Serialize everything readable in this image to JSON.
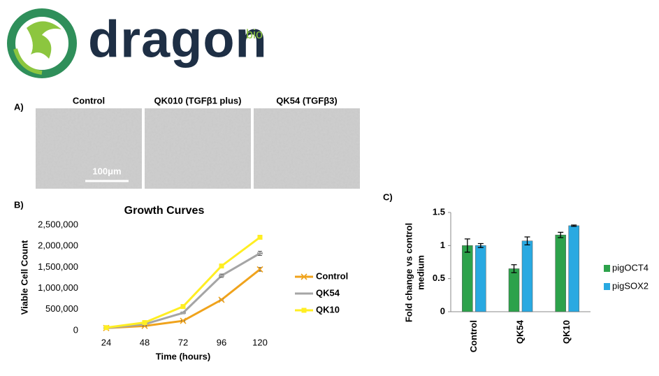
{
  "logo": {
    "name": "dragon",
    "suffix": "bio"
  },
  "panel_a": {
    "label": "A)",
    "images": [
      "Control",
      "QK010 (TGFβ1 plus)",
      "QK54 (TGFβ3)"
    ],
    "scale_bar": "100μm"
  },
  "chart_data": [
    {
      "type": "line",
      "panel": "B)",
      "title": "Growth Curves",
      "x_label": "Time (hours)",
      "y_label": "Viable Cell Count",
      "categories": [
        "24",
        "48",
        "72",
        "96",
        "120"
      ],
      "ylim": [
        0,
        2500000
      ],
      "yticks": [
        0,
        {
          "value": 500000,
          "label": "500,000"
        },
        {
          "value": 1000000,
          "label": "1,000,000"
        },
        {
          "value": 1500000,
          "label": "1,500,000"
        },
        {
          "value": 2000000,
          "label": "2,000,000"
        },
        {
          "value": 2500000,
          "label": "2,500,000"
        }
      ],
      "legend": "right",
      "series": [
        {
          "name": "Control",
          "color": "#f0a31c",
          "marker": "x",
          "values": [
            60000,
            110000,
            230000,
            730000,
            1450000
          ],
          "errors": [
            10000,
            10000,
            15000,
            20000,
            45000
          ]
        },
        {
          "name": "QK54",
          "color": "#a5a5a5",
          "marker": "dash",
          "values": [
            60000,
            150000,
            420000,
            1300000,
            1830000
          ],
          "errors": [
            10000,
            10000,
            20000,
            40000,
            50000
          ]
        },
        {
          "name": "QK10",
          "color": "#ffee22",
          "marker": "square",
          "values": [
            70000,
            190000,
            570000,
            1530000,
            2210000
          ],
          "errors": [
            10000,
            10000,
            20000,
            30000,
            50000
          ]
        }
      ]
    },
    {
      "type": "bar",
      "panel": "C)",
      "y_label": [
        "Fold change vs control",
        "medium"
      ],
      "categories": [
        "Control",
        "QK54",
        "QK10"
      ],
      "ylim": [
        0,
        1.5
      ],
      "yticks": [
        0,
        0.5,
        1,
        1.5
      ],
      "legend": "right",
      "series": [
        {
          "name": "pigOCT4",
          "color": "#2da24b",
          "values": [
            1.0,
            0.65,
            1.16
          ],
          "errors": [
            0.1,
            0.06,
            0.04
          ]
        },
        {
          "name": "pigSOX2",
          "color": "#29a9e1",
          "values": [
            1.0,
            1.07,
            1.3
          ],
          "errors": [
            0.03,
            0.06,
            0.01
          ]
        }
      ]
    }
  ]
}
